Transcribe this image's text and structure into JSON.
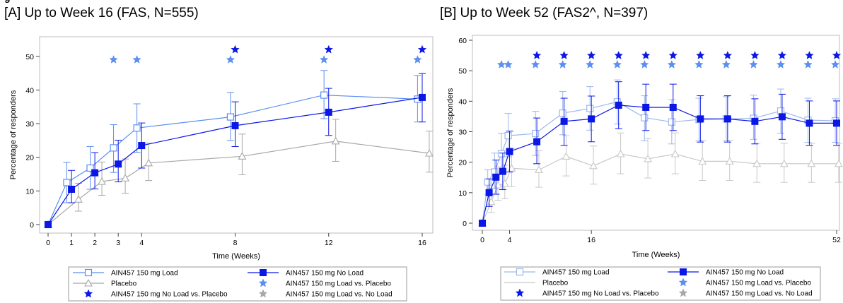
{
  "header_clip": "g",
  "chart_data": [
    {
      "type": "line",
      "title": "[A] Up to Week 16 (FAS, N=555)",
      "xlabel": "Time (Weeks)",
      "ylabel": "Percentage of responders",
      "xlim": [
        0,
        16
      ],
      "ylim": [
        0,
        55
      ],
      "xticks": [
        0,
        1,
        2,
        3,
        4,
        8,
        12,
        16
      ],
      "yticks": [
        0,
        10,
        20,
        30,
        40,
        50
      ],
      "series": [
        {
          "name": "AIN457 150 mg Load",
          "color": "#5b8ff0",
          "marker": "open-square",
          "x": [
            0,
            0.8,
            1.8,
            2.8,
            3.8,
            7.8,
            11.8,
            15.8
          ],
          "y": [
            0,
            12.5,
            16.8,
            22.8,
            28.7,
            32.0,
            38.5,
            37.3
          ],
          "err_low": [
            0,
            6.5,
            10.5,
            15.5,
            21.5,
            25.0,
            31.5,
            30.5
          ],
          "err_high": [
            0,
            18.5,
            23.2,
            29.7,
            35.9,
            39.3,
            45.8,
            44.3
          ]
        },
        {
          "name": "AIN457 150 mg No Load",
          "color": "#0a17e6",
          "marker": "filled-square",
          "x": [
            0,
            1,
            2,
            3,
            4,
            8,
            12,
            16
          ],
          "y": [
            0,
            10.5,
            15.4,
            18.0,
            23.5,
            29.4,
            33.4,
            37.8
          ],
          "err_low": [
            0,
            6.5,
            10.6,
            12.7,
            16.8,
            23.2,
            26.5,
            30.5
          ],
          "err_high": [
            0,
            16.1,
            21.4,
            25.1,
            30.2,
            36.5,
            40.5,
            44.9
          ]
        },
        {
          "name": "Placebo",
          "color": "#a8a8a8",
          "marker": "open-triangle",
          "x": [
            0,
            1.3,
            2.3,
            3.3,
            4.3,
            8.3,
            12.3,
            16.3
          ],
          "y": [
            0,
            7.5,
            12.8,
            13.8,
            18.3,
            20.3,
            24.8,
            21.2
          ],
          "err_low": [
            0,
            4.0,
            8.7,
            9.3,
            13.1,
            14.8,
            18.8,
            15.6
          ],
          "err_high": [
            0,
            12.3,
            18.6,
            19.5,
            24.2,
            26.9,
            31.3,
            27.8
          ]
        }
      ],
      "significance": [
        {
          "name": "AIN457 150 mg Load vs. Placebo",
          "color": "#5b8ff0",
          "x": [
            2.8,
            3.8,
            7.8,
            11.8,
            15.8
          ],
          "y": 49
        },
        {
          "name": "AIN457 150 mg No Load vs. Placebo",
          "color": "#0a17e6",
          "x": [
            8,
            12,
            16
          ],
          "y": 52
        }
      ]
    },
    {
      "type": "line",
      "title": "[B] Up to Week 52 (FAS2^, N=397)",
      "xlabel": "Time (Weeks)",
      "ylabel": "Percentage of responders",
      "xlim": [
        0,
        52
      ],
      "ylim": [
        0,
        60
      ],
      "xticks": [
        0,
        4,
        16,
        52
      ],
      "yticks": [
        0,
        10,
        20,
        30,
        40,
        50,
        60
      ],
      "series": [
        {
          "name": "AIN457 150 mg Load",
          "color": "#9db8ee",
          "marker": "open-square",
          "x": [
            0,
            0.8,
            1.8,
            2.8,
            3.8,
            7.8,
            11.8,
            15.8,
            19.8,
            23.8,
            27.8,
            31.8,
            35.8,
            39.8,
            43.8,
            47.8,
            51.8
          ],
          "y": [
            0,
            13.5,
            16.8,
            22.8,
            28.7,
            29.4,
            36.1,
            37.6,
            39.8,
            34.6,
            33.2,
            34.0,
            34.2,
            34.4,
            36.8,
            33.8,
            33.6
          ],
          "err_low": [
            0,
            9.5,
            11.4,
            16.8,
            21.8,
            22.2,
            29.0,
            30.5,
            32.5,
            27.0,
            26.0,
            27.0,
            27.0,
            27.5,
            29.5,
            26.5,
            26.5
          ],
          "err_high": [
            0,
            17.5,
            23.0,
            29.5,
            36.0,
            36.7,
            43.2,
            44.8,
            47.0,
            41.8,
            40.5,
            41.0,
            41.5,
            42.0,
            44.0,
            41.0,
            40.8
          ]
        },
        {
          "name": "AIN457 150 mg No Load",
          "color": "#0a17e6",
          "marker": "filled-square",
          "x": [
            0,
            1,
            2,
            3,
            4,
            8,
            12,
            16,
            20,
            24,
            28,
            32,
            36,
            40,
            44,
            48,
            52
          ],
          "y": [
            0,
            10.0,
            15.1,
            17.0,
            23.5,
            26.7,
            33.4,
            34.2,
            38.7,
            38.0,
            38.0,
            34.2,
            34.2,
            33.4,
            34.9,
            32.8,
            32.8
          ],
          "err_low": [
            0,
            5.5,
            9.5,
            11.0,
            16.8,
            19.5,
            25.5,
            26.7,
            31.0,
            30.4,
            30.4,
            26.6,
            26.6,
            26.0,
            27.5,
            25.5,
            25.5
          ],
          "err_high": [
            0,
            14.5,
            20.7,
            23.0,
            30.2,
            34.5,
            41.0,
            41.7,
            46.4,
            45.6,
            45.6,
            41.8,
            41.8,
            40.8,
            42.3,
            40.1,
            40.1
          ]
        },
        {
          "name": "Placebo",
          "color": "#c8c8c8",
          "marker": "open-triangle",
          "x": [
            0,
            1.3,
            2.3,
            3.3,
            4.3,
            8.3,
            12.3,
            16.3,
            20.3,
            24.3,
            28.3,
            32.3,
            36.3,
            40.3,
            44.3,
            48.3,
            52.3
          ],
          "y": [
            0,
            7.0,
            12.5,
            13.0,
            18.0,
            17.5,
            21.9,
            18.8,
            22.7,
            21.1,
            22.7,
            20.3,
            20.3,
            19.5,
            19.5,
            19.5,
            19.5
          ],
          "err_low": [
            0,
            3.5,
            7.5,
            8.0,
            12.0,
            11.8,
            15.5,
            12.8,
            16.2,
            14.8,
            16.2,
            14.0,
            14.0,
            13.4,
            13.4,
            13.4,
            13.4
          ],
          "err_high": [
            0,
            11.5,
            18.5,
            19.0,
            24.5,
            23.8,
            28.7,
            25.3,
            29.6,
            27.8,
            29.6,
            27.2,
            27.2,
            26.2,
            26.2,
            26.2,
            26.2
          ]
        }
      ],
      "significance": [
        {
          "name": "AIN457 150 mg Load vs. Placebo",
          "color": "#5b8ff0",
          "x": [
            2.8,
            3.8,
            7.8,
            11.8,
            15.8,
            19.8,
            23.8,
            27.8,
            31.8,
            35.8,
            39.8,
            43.8,
            47.8,
            51.8
          ],
          "y": 52
        },
        {
          "name": "AIN457 150 mg No Load vs. Placebo",
          "color": "#0a17e6",
          "x": [
            8,
            12,
            16,
            20,
            24,
            28,
            32,
            36,
            40,
            44,
            48,
            52
          ],
          "y": 55
        }
      ]
    }
  ],
  "legend_a": [
    {
      "label": "AIN457 150 mg Load",
      "color": "#5b8ff0",
      "kind": "line-open-square"
    },
    {
      "label": "AIN457 150 mg No Load",
      "color": "#0a17e6",
      "kind": "line-filled-square"
    },
    {
      "label": "Placebo",
      "color": "#a8a8a8",
      "kind": "line-open-triangle"
    },
    {
      "label": "AIN457 150 mg Load vs. Placebo",
      "color": "#5b8ff0",
      "kind": "star"
    },
    {
      "label": "AIN457 150 mg No Load vs. Placebo",
      "color": "#0a17e6",
      "kind": "star"
    },
    {
      "label": "AIN457 150 mg Load vs. No Load",
      "color": "#a8a8a8",
      "kind": "star"
    }
  ],
  "legend_b": [
    {
      "label": "AIN457 150 mg Load",
      "color": "#9db8ee",
      "kind": "line-open-square"
    },
    {
      "label": "AIN457 150 mg No Load",
      "color": "#0a17e6",
      "kind": "line-filled-square"
    },
    {
      "label": "Placebo",
      "color": "#c8c8c8",
      "kind": "line-plain"
    },
    {
      "label": "AIN457 150 mg Load vs. Placebo",
      "color": "#5b8ff0",
      "kind": "star"
    },
    {
      "label": "AIN457 150 mg No Load vs. Placebo",
      "color": "#0a17e6",
      "kind": "star"
    },
    {
      "label": "AIN457 150 mg Load vs. No Load",
      "color": "#a8a8a8",
      "kind": "star"
    }
  ]
}
